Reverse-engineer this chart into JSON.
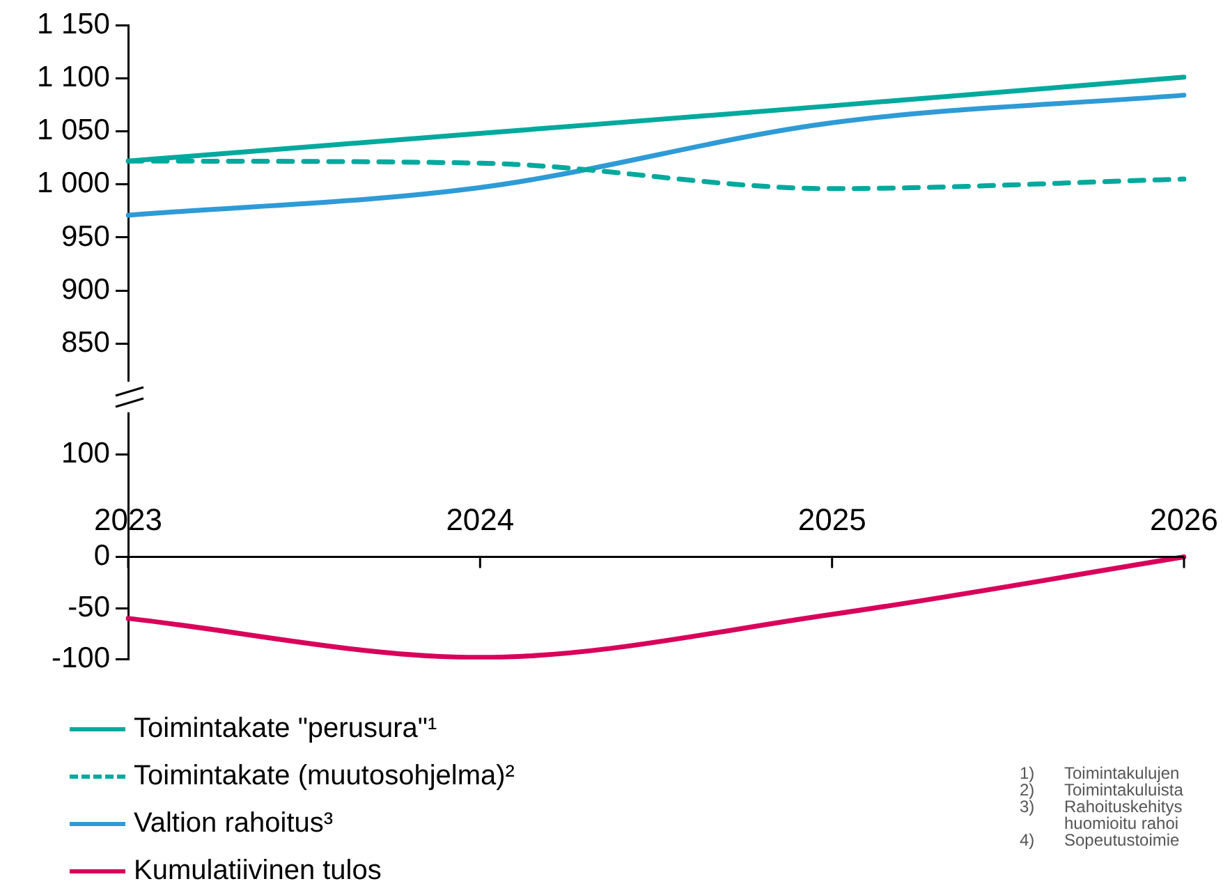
{
  "chart_data": [
    {
      "type": "line",
      "categories": [
        "2023",
        "2024",
        "2025",
        "2026"
      ],
      "ylim": [
        815,
        1150
      ],
      "yticks": [
        850,
        900,
        950,
        {
          "value": 1000,
          "label": "1 000"
        },
        {
          "value": 1050,
          "label": "1 050"
        },
        {
          "value": 1100,
          "label": "1 100"
        },
        {
          "value": 1150,
          "label": "1 150"
        }
      ],
      "grid": false,
      "tick_labels": "y",
      "legend": "bottom",
      "marker": "none",
      "series": [
        {
          "name": "Toimintakate \"perusura\"¹",
          "color": "#00a99d",
          "values": [
            1022,
            1048,
            1074,
            1101
          ]
        },
        {
          "name": "Toimintakate (muutosohjelma)²",
          "color": "#00a99d",
          "line_style": "dashed",
          "values": [
            1022,
            1020,
            996,
            1005
          ]
        },
        {
          "name": "Valtion rahoitus³",
          "color": "#2e9bd6",
          "values": [
            971,
            997,
            1058,
            1084
          ]
        }
      ]
    },
    {
      "type": "line",
      "categories": [
        "2023",
        "2024",
        "2025",
        "2026"
      ],
      "ylim": [
        -100,
        140
      ],
      "yticks": [
        -100,
        -50,
        0,
        100
      ],
      "grid": false,
      "legend": "bottom",
      "marker": "none",
      "series": [
        {
          "name": "Kumulatiivinen tulos",
          "color": "#d9005b",
          "values": [
            -60,
            -98,
            -56,
            0
          ]
        }
      ],
      "annotations": [
        "1)\tToimintakulujen",
        "2)\tToimintakuluista",
        "3)\tRahoituskehitys",
        "\thuomioitu rahoi",
        "4)\tSopeutustoimie"
      ]
    }
  ]
}
